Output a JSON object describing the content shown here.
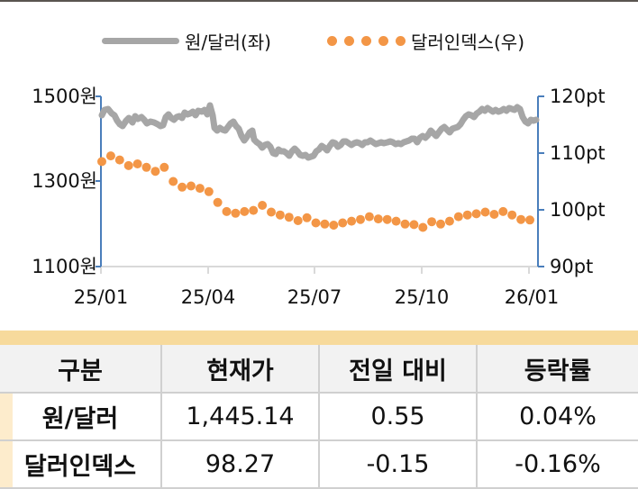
{
  "legend": {
    "series1": "원/달러(좌)",
    "series2": "달러인덱스(우)"
  },
  "axes": {
    "left": [
      "1500원",
      "1300원",
      "1100원"
    ],
    "right": [
      "120pt",
      "110pt",
      "100pt",
      "90pt"
    ],
    "x": [
      "25/01",
      "25/04",
      "25/07",
      "25/10",
      "26/01"
    ]
  },
  "colors": {
    "krw_usd_line": "#a6a6a6",
    "dollar_index_dots": "#f39646",
    "axis_blue": "#4a7ebb",
    "table_band": "#f7da9c",
    "table_header_bg": "#f2f2f2"
  },
  "table": {
    "headers": [
      "구분",
      "현재가",
      "전일 대비",
      "등락률"
    ],
    "rows": [
      {
        "name": "원/달러",
        "price": "1,445.14",
        "change": "0.55",
        "rate": "0.04%"
      },
      {
        "name": "달러인덱스",
        "price": "98.27",
        "change": "-0.15",
        "rate": "-0.16%"
      }
    ]
  },
  "chart_data": {
    "type": "line",
    "title": "",
    "xlabel": "",
    "ylabel_left": "원",
    "ylabel_right": "pt",
    "x_ticks": [
      "25/01",
      "25/04",
      "25/07",
      "25/10",
      "26/01"
    ],
    "ylim_left": [
      1100,
      1500
    ],
    "ylim_right": [
      90,
      120
    ],
    "legend_position": "top",
    "grid": false,
    "series": [
      {
        "name": "원/달러(좌)",
        "axis": "left",
        "style": "line",
        "x": [
          "25/01",
          "25/01",
          "25/02",
          "25/02",
          "25/02",
          "25/03",
          "25/03",
          "25/03",
          "25/04",
          "25/04",
          "25/04",
          "25/05",
          "25/05",
          "25/05",
          "25/06",
          "25/06",
          "25/07",
          "25/07",
          "25/07",
          "25/08",
          "25/08",
          "25/08",
          "25/09",
          "25/09",
          "25/09",
          "25/10",
          "25/10",
          "25/11",
          "25/11",
          "25/11",
          "25/12",
          "25/12",
          "25/12",
          "26/01"
        ],
        "values": [
          1460,
          1468,
          1430,
          1455,
          1440,
          1448,
          1455,
          1468,
          1478,
          1420,
          1435,
          1395,
          1405,
          1375,
          1370,
          1360,
          1365,
          1380,
          1390,
          1385,
          1390,
          1388,
          1390,
          1385,
          1395,
          1400,
          1415,
          1430,
          1450,
          1465,
          1470,
          1472,
          1475,
          1445
        ]
      },
      {
        "name": "달러인덱스(우)",
        "axis": "right",
        "style": "scatter-dots",
        "x": [
          "25/01",
          "25/01",
          "25/01",
          "25/01",
          "25/02",
          "25/02",
          "25/02",
          "25/02",
          "25/02",
          "25/03",
          "25/03",
          "25/03",
          "25/03",
          "25/03",
          "25/04",
          "25/04",
          "25/04",
          "25/04",
          "25/05",
          "25/05",
          "25/05",
          "25/05",
          "25/05",
          "25/06",
          "25/06",
          "25/06",
          "25/06",
          "25/07",
          "25/07",
          "25/07",
          "25/07",
          "25/08",
          "25/08",
          "25/08",
          "25/08",
          "25/09",
          "25/09",
          "25/09",
          "25/09",
          "25/10",
          "25/10",
          "25/10",
          "25/11",
          "25/11",
          "25/11",
          "25/12",
          "25/12",
          "25/12",
          "26/01"
        ],
        "values": [
          108.5,
          109.5,
          108.8,
          107.8,
          108.1,
          107.5,
          106.8,
          107.5,
          105.0,
          104.0,
          104.2,
          103.8,
          103.2,
          101.3,
          99.7,
          99.4,
          99.7,
          99.9,
          100.8,
          99.6,
          99.1,
          98.7,
          98.1,
          98.6,
          97.7,
          97.5,
          97.3,
          97.7,
          98.0,
          98.3,
          98.8,
          98.4,
          98.3,
          98.0,
          97.5,
          97.4,
          96.9,
          97.9,
          97.5,
          98.0,
          98.8,
          99.1,
          99.3,
          99.6,
          99.2,
          99.7,
          99.1,
          98.3,
          98.2
        ]
      }
    ]
  }
}
